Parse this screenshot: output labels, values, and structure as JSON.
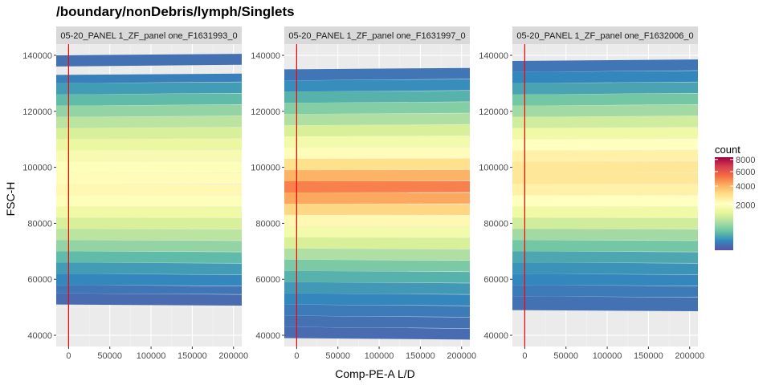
{
  "chart_data": {
    "type": "heatmap",
    "title": "/boundary/nonDebris/lymph/Singlets",
    "xlabel": "Comp-PE-A L/D",
    "ylabel": "FSC-H",
    "xlim": [
      -15000,
      210000
    ],
    "ylim": [
      36000,
      144000
    ],
    "x_ticks": [
      0,
      50000,
      100000,
      150000,
      200000
    ],
    "x_tick_labels": [
      "0",
      "50000",
      "100000",
      "150000",
      "200000"
    ],
    "y_ticks": [
      40000,
      60000,
      80000,
      100000,
      120000,
      140000
    ],
    "y_tick_labels": [
      "40000",
      "60000",
      "80000",
      "100000",
      "120000",
      "140000"
    ],
    "gate_line_x": 0,
    "gate_line_color": "#ff0000",
    "panel_background": "#ebebeb",
    "grid": true,
    "legend": {
      "title": "count",
      "position": "right",
      "breaks": [
        2000,
        4000,
        6000,
        8000
      ],
      "break_labels": [
        "2000",
        "4000",
        "6000",
        "8000"
      ],
      "range": [
        0,
        8400
      ],
      "colors": [
        "#5e4fa2",
        "#3288bd",
        "#66c2a5",
        "#abdda4",
        "#e6f598",
        "#ffffbf",
        "#fee08b",
        "#fdae61",
        "#f46d43",
        "#d53e4f",
        "#9e0142"
      ]
    },
    "panels": [
      {
        "strip_label": "05-20_PANEL 1_ZF_panel one_F1631993_0",
        "bands": [
          {
            "y0": 136000,
            "y1": 140000,
            "count": 30
          },
          {
            "y0": 130000,
            "y1": 133000,
            "count": 60
          },
          {
            "y0": 126000,
            "y1": 130000,
            "count": 150
          },
          {
            "y0": 122000,
            "y1": 126000,
            "count": 300
          },
          {
            "y0": 118000,
            "y1": 122000,
            "count": 600
          },
          {
            "y0": 114000,
            "y1": 118000,
            "count": 900
          },
          {
            "y0": 110000,
            "y1": 114000,
            "count": 1200
          },
          {
            "y0": 106000,
            "y1": 110000,
            "count": 1500
          },
          {
            "y0": 102000,
            "y1": 106000,
            "count": 1800
          },
          {
            "y0": 98000,
            "y1": 102000,
            "count": 2000
          },
          {
            "y0": 94000,
            "y1": 98000,
            "count": 2200
          },
          {
            "y0": 90000,
            "y1": 94000,
            "count": 2300
          },
          {
            "y0": 86000,
            "y1": 90000,
            "count": 2000
          },
          {
            "y0": 82000,
            "y1": 86000,
            "count": 1600
          },
          {
            "y0": 78000,
            "y1": 82000,
            "count": 1200
          },
          {
            "y0": 74000,
            "y1": 78000,
            "count": 900
          },
          {
            "y0": 70000,
            "y1": 74000,
            "count": 600
          },
          {
            "y0": 66000,
            "y1": 70000,
            "count": 300
          },
          {
            "y0": 62000,
            "y1": 66000,
            "count": 150
          },
          {
            "y0": 58000,
            "y1": 62000,
            "count": 80
          },
          {
            "y0": 55000,
            "y1": 58000,
            "count": 40
          },
          {
            "y0": 51000,
            "y1": 55000,
            "count": 20
          }
        ]
      },
      {
        "strip_label": "05-20_PANEL 1_ZF_panel one_F1631997_0",
        "bands": [
          {
            "y0": 131000,
            "y1": 135000,
            "count": 40
          },
          {
            "y0": 127000,
            "y1": 131000,
            "count": 100
          },
          {
            "y0": 123000,
            "y1": 127000,
            "count": 250
          },
          {
            "y0": 119000,
            "y1": 123000,
            "count": 500
          },
          {
            "y0": 115000,
            "y1": 119000,
            "count": 800
          },
          {
            "y0": 111000,
            "y1": 115000,
            "count": 1200
          },
          {
            "y0": 107000,
            "y1": 111000,
            "count": 1700
          },
          {
            "y0": 103000,
            "y1": 107000,
            "count": 2200
          },
          {
            "y0": 99000,
            "y1": 103000,
            "count": 3000
          },
          {
            "y0": 95000,
            "y1": 99000,
            "count": 4000
          },
          {
            "y0": 91000,
            "y1": 95000,
            "count": 5000
          },
          {
            "y0": 87000,
            "y1": 91000,
            "count": 4200
          },
          {
            "y0": 83000,
            "y1": 87000,
            "count": 3200
          },
          {
            "y0": 79000,
            "y1": 83000,
            "count": 2300
          },
          {
            "y0": 75000,
            "y1": 79000,
            "count": 1700
          },
          {
            "y0": 71000,
            "y1": 75000,
            "count": 1200
          },
          {
            "y0": 67000,
            "y1": 71000,
            "count": 800
          },
          {
            "y0": 63000,
            "y1": 67000,
            "count": 450
          },
          {
            "y0": 59000,
            "y1": 63000,
            "count": 250
          },
          {
            "y0": 55000,
            "y1": 59000,
            "count": 140
          },
          {
            "y0": 51000,
            "y1": 55000,
            "count": 80
          },
          {
            "y0": 47000,
            "y1": 51000,
            "count": 50
          },
          {
            "y0": 43000,
            "y1": 47000,
            "count": 30
          },
          {
            "y0": 39000,
            "y1": 43000,
            "count": 20
          }
        ]
      },
      {
        "strip_label": "05-20_PANEL 1_ZF_panel one_F1632006_0",
        "bands": [
          {
            "y0": 134000,
            "y1": 138000,
            "count": 40
          },
          {
            "y0": 130000,
            "y1": 134000,
            "count": 80
          },
          {
            "y0": 126000,
            "y1": 130000,
            "count": 180
          },
          {
            "y0": 122000,
            "y1": 126000,
            "count": 400
          },
          {
            "y0": 118000,
            "y1": 122000,
            "count": 700
          },
          {
            "y0": 114000,
            "y1": 118000,
            "count": 1100
          },
          {
            "y0": 110000,
            "y1": 114000,
            "count": 1600
          },
          {
            "y0": 106000,
            "y1": 110000,
            "count": 2100
          },
          {
            "y0": 102000,
            "y1": 106000,
            "count": 2500
          },
          {
            "y0": 98000,
            "y1": 102000,
            "count": 2800
          },
          {
            "y0": 94000,
            "y1": 98000,
            "count": 2800
          },
          {
            "y0": 90000,
            "y1": 94000,
            "count": 2500
          },
          {
            "y0": 86000,
            "y1": 90000,
            "count": 2100
          },
          {
            "y0": 82000,
            "y1": 86000,
            "count": 1600
          },
          {
            "y0": 78000,
            "y1": 82000,
            "count": 1100
          },
          {
            "y0": 74000,
            "y1": 78000,
            "count": 700
          },
          {
            "y0": 70000,
            "y1": 74000,
            "count": 400
          },
          {
            "y0": 66000,
            "y1": 70000,
            "count": 200
          },
          {
            "y0": 62000,
            "y1": 66000,
            "count": 120
          },
          {
            "y0": 58000,
            "y1": 62000,
            "count": 80
          },
          {
            "y0": 54000,
            "y1": 58000,
            "count": 50
          },
          {
            "y0": 49000,
            "y1": 54000,
            "count": 30
          }
        ]
      }
    ]
  }
}
